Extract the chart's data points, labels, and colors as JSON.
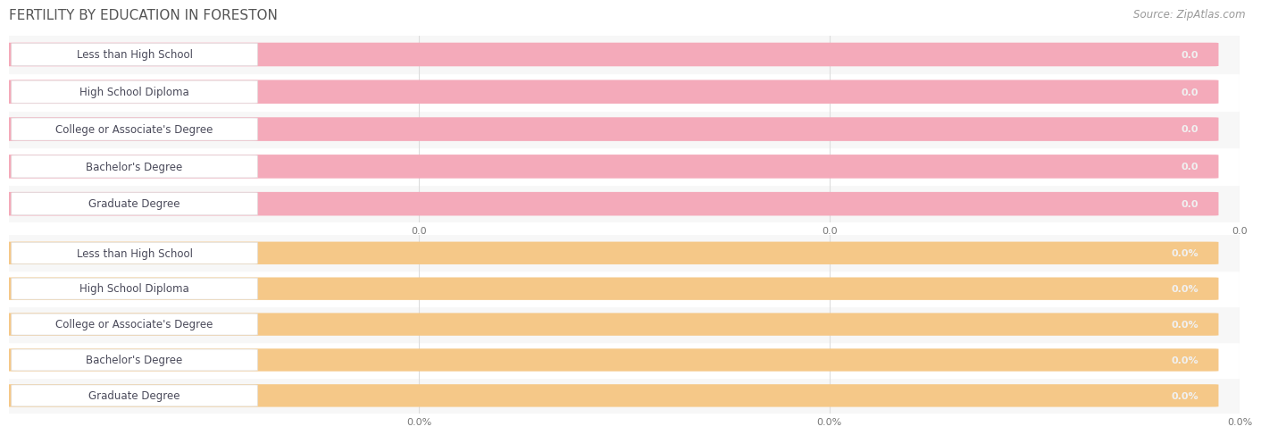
{
  "title": "FERTILITY BY EDUCATION IN FORESTON",
  "source": "Source: ZipAtlas.com",
  "categories": [
    "Less than High School",
    "High School Diploma",
    "College or Associate's Degree",
    "Bachelor's Degree",
    "Graduate Degree"
  ],
  "top_values": [
    0.0,
    0.0,
    0.0,
    0.0,
    0.0
  ],
  "bottom_values": [
    0.0,
    0.0,
    0.0,
    0.0,
    0.0
  ],
  "top_bar_color": "#F4AABA",
  "bottom_bar_color": "#F5C888",
  "category_text_color": "#4A4A5A",
  "value_text_color": "#F0F0F0",
  "title_color": "#555555",
  "source_color": "#999999",
  "background_color": "#FFFFFF",
  "row_odd_color": "#F7F7F7",
  "row_even_color": "#FFFFFF",
  "grid_color": "#DDDDDD",
  "label_box_color": "#FFFFFF",
  "label_box_edge_color": "#E0E0E0",
  "title_fontsize": 11,
  "source_fontsize": 8.5,
  "category_fontsize": 8.5,
  "value_fontsize": 8,
  "tick_fontsize": 8,
  "top_xtick_labels": [
    "0.0",
    "0.0",
    "0.0"
  ],
  "bottom_xtick_labels": [
    "0.0%",
    "0.0%",
    "0.0%"
  ]
}
